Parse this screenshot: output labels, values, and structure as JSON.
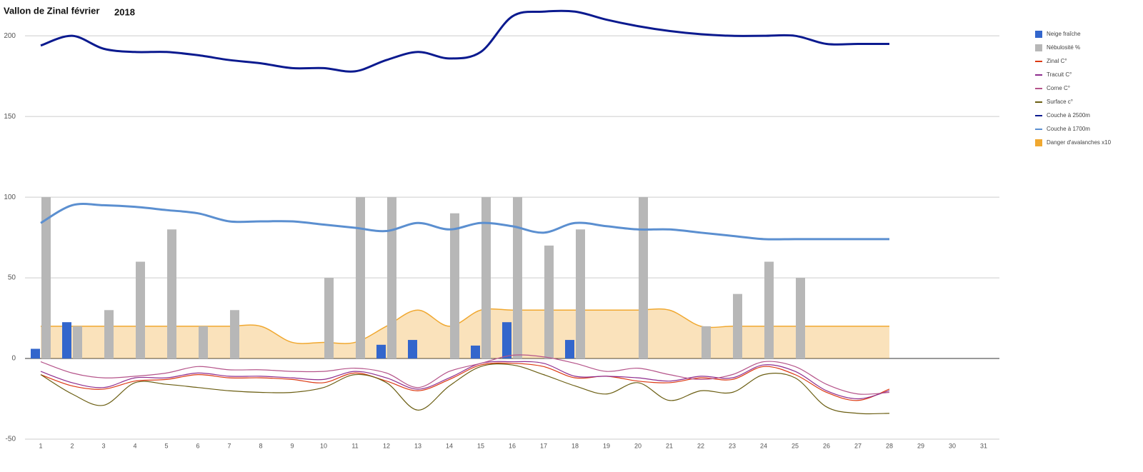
{
  "chart_data": {
    "type": "combo",
    "title": "Vallon de Zinal février",
    "subtitle": "2018",
    "categories": [
      1,
      2,
      3,
      4,
      5,
      6,
      7,
      8,
      9,
      10,
      11,
      12,
      13,
      14,
      15,
      16,
      17,
      18,
      19,
      20,
      21,
      22,
      23,
      24,
      25,
      26,
      27,
      28,
      29,
      30,
      31
    ],
    "ylim": [
      -50,
      220
    ],
    "yticks": [
      -50,
      0,
      50,
      100,
      150,
      200
    ],
    "grid": true,
    "legend": "right",
    "series": [
      {
        "name": "Neige fraîche",
        "kind": "bar",
        "color": "#3366cc",
        "values": [
          6,
          22.5,
          null,
          null,
          null,
          null,
          null,
          null,
          null,
          null,
          null,
          8.5,
          11.5,
          null,
          8,
          22.5,
          null,
          11.5,
          null,
          null,
          null,
          null,
          null,
          null,
          null,
          null,
          null,
          null,
          null,
          null,
          null
        ]
      },
      {
        "name": "Nébulosité %",
        "kind": "bar",
        "color": "#b7b7b7",
        "values": [
          100,
          20,
          30,
          60,
          80,
          20,
          30,
          null,
          null,
          50,
          100,
          100,
          null,
          90,
          100,
          100,
          70,
          80,
          null,
          100,
          null,
          20,
          40,
          60,
          50,
          null,
          null,
          null,
          null,
          null,
          null
        ]
      },
      {
        "name": "Zinal C°",
        "kind": "line",
        "color": "#dc3912",
        "values": [
          -10,
          -17,
          -19,
          -14,
          -13,
          -10,
          -12,
          -12,
          -13,
          -15,
          -9,
          -14,
          -20,
          -13,
          -4,
          -3,
          -5,
          -12,
          -11,
          -14,
          -15,
          -12,
          -13,
          -5,
          -10,
          -21,
          -26,
          -19,
          null,
          null,
          null
        ]
      },
      {
        "name": "Tracuit C°",
        "kind": "line",
        "color": "#8e2c8e",
        "values": [
          -8,
          -15,
          -18,
          -12,
          -12,
          -9,
          -11,
          -11,
          -12,
          -13,
          -8,
          -12,
          -19,
          -12,
          -3,
          -2,
          -3,
          -11,
          -11,
          -12,
          -14,
          -11,
          -12,
          -4,
          -8,
          -20,
          -25,
          -20,
          null,
          null,
          null
        ]
      },
      {
        "name": "Corne C°",
        "kind": "line",
        "color": "#b5548a",
        "values": [
          -2,
          -9,
          -12,
          -11,
          -9,
          -5,
          -7,
          -7,
          -8,
          -8,
          -6,
          -9,
          -18,
          -8,
          -3,
          2,
          1,
          -3,
          -8,
          -6,
          -10,
          -13,
          -10,
          -2,
          -5,
          -16,
          -22,
          -21,
          null,
          null,
          null
        ]
      },
      {
        "name": "Surface c°",
        "kind": "line",
        "color": "#6b5e12",
        "values": [
          -10,
          -22,
          -29,
          -15,
          -16,
          -18,
          -20,
          -21,
          -21,
          -18,
          -10,
          -15,
          -32,
          -17,
          -5,
          -4,
          -10,
          -17,
          -22,
          -15,
          -26,
          -20,
          -21,
          -10,
          -12,
          -30,
          -34,
          -34,
          null,
          null,
          null
        ]
      },
      {
        "name": "Couche à 2500m",
        "kind": "line",
        "color": "#0b1a8f",
        "values": [
          194,
          200,
          192,
          190,
          190,
          188,
          185,
          183,
          180,
          180,
          178,
          185,
          190,
          186,
          190,
          212,
          215,
          215,
          210,
          206,
          203,
          201,
          200,
          200,
          200,
          195,
          195,
          195,
          null,
          null,
          null
        ]
      },
      {
        "name": "Couche à 1700m",
        "kind": "line",
        "color": "#5b8fd0",
        "values": [
          84,
          95,
          95,
          94,
          92,
          90,
          85,
          85,
          85,
          83,
          81,
          79,
          84,
          80,
          84,
          82,
          78,
          84,
          82,
          80,
          80,
          78,
          76,
          74,
          74,
          74,
          74,
          74,
          null,
          null,
          null
        ]
      },
      {
        "name": "Danger d'avalanches x10",
        "kind": "area",
        "color": "#f0a830",
        "values": [
          20,
          20,
          20,
          20,
          20,
          20,
          20,
          20,
          10,
          10,
          10,
          20,
          30,
          20,
          30,
          30,
          30,
          30,
          30,
          30,
          30,
          20,
          20,
          20,
          20,
          20,
          20,
          20,
          null,
          null,
          null
        ]
      }
    ]
  }
}
